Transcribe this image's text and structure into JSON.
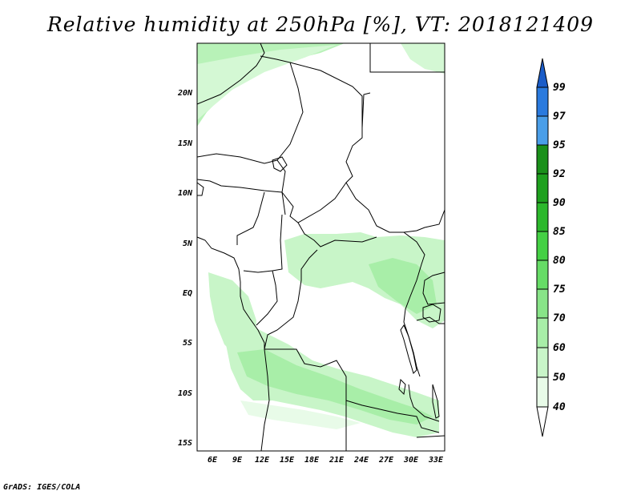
{
  "title": "Relative humidity at 250hPa [%], VT: 2018121409",
  "credit": "GrADS: IGES/COLA",
  "map": {
    "lon_labels": [
      "6E",
      "9E",
      "12E",
      "15E",
      "18E",
      "21E",
      "24E",
      "27E",
      "30E",
      "33E"
    ],
    "lat_labels": [
      "20N",
      "15N",
      "10N",
      "5N",
      "EQ",
      "5S",
      "10S",
      "15S"
    ]
  },
  "colorbar": {
    "levels": [
      "40",
      "50",
      "60",
      "70",
      "75",
      "80",
      "85",
      "90",
      "92",
      "95",
      "97",
      "99"
    ],
    "colors": [
      "#ffffff",
      "#e8fbe8",
      "#c8f5c8",
      "#a8eea8",
      "#88e488",
      "#66dc66",
      "#44d044",
      "#2cb82c",
      "#1ea01e",
      "#1a901a",
      "#4a9ee8",
      "#2a7ade",
      "#1a5cc8"
    ]
  }
}
